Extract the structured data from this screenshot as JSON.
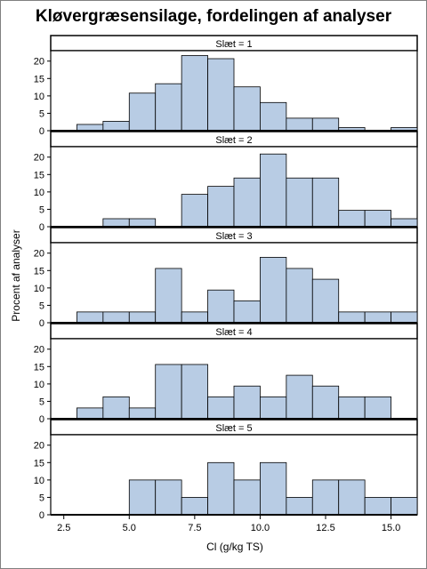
{
  "chart_data": {
    "type": "bar",
    "title": "Kløvergræsensilage, fordelingen af analyser",
    "xlabel": "Cl (g/kg TS)",
    "ylabel": "Procent af analyser",
    "xlim": [
      2,
      16
    ],
    "xticks": [
      "2.5",
      "5.0",
      "7.5",
      "10.0",
      "12.5",
      "15.0"
    ],
    "ylim": [
      0,
      23
    ],
    "yticks": [
      "0",
      "5",
      "10",
      "15",
      "20"
    ],
    "bin_width": 1,
    "bar_color": "#b8cce4",
    "panels": [
      {
        "label": "Slæt = 1",
        "bins": [
          {
            "x0": 3,
            "value": 1.8
          },
          {
            "x0": 4,
            "value": 2.7
          },
          {
            "x0": 5,
            "value": 10.8
          },
          {
            "x0": 6,
            "value": 13.5
          },
          {
            "x0": 7,
            "value": 21.6
          },
          {
            "x0": 8,
            "value": 20.7
          },
          {
            "x0": 9,
            "value": 12.6
          },
          {
            "x0": 10,
            "value": 8.1
          },
          {
            "x0": 11,
            "value": 3.6
          },
          {
            "x0": 12,
            "value": 3.6
          },
          {
            "x0": 13,
            "value": 0.9
          },
          {
            "x0": 15,
            "value": 0.9
          }
        ]
      },
      {
        "label": "Slæt = 2",
        "bins": [
          {
            "x0": 4,
            "value": 2.3
          },
          {
            "x0": 5,
            "value": 2.3
          },
          {
            "x0": 7,
            "value": 9.3
          },
          {
            "x0": 8,
            "value": 11.6
          },
          {
            "x0": 9,
            "value": 14.0
          },
          {
            "x0": 10,
            "value": 20.9
          },
          {
            "x0": 11,
            "value": 14.0
          },
          {
            "x0": 12,
            "value": 14.0
          },
          {
            "x0": 13,
            "value": 4.7
          },
          {
            "x0": 14,
            "value": 4.7
          },
          {
            "x0": 15,
            "value": 2.3
          }
        ]
      },
      {
        "label": "Slæt = 3",
        "bins": [
          {
            "x0": 3,
            "value": 3.1
          },
          {
            "x0": 4,
            "value": 3.1
          },
          {
            "x0": 5,
            "value": 3.1
          },
          {
            "x0": 6,
            "value": 15.6
          },
          {
            "x0": 7,
            "value": 3.1
          },
          {
            "x0": 8,
            "value": 9.4
          },
          {
            "x0": 9,
            "value": 6.3
          },
          {
            "x0": 10,
            "value": 18.8
          },
          {
            "x0": 11,
            "value": 15.6
          },
          {
            "x0": 12,
            "value": 12.5
          },
          {
            "x0": 13,
            "value": 3.1
          },
          {
            "x0": 14,
            "value": 3.1
          },
          {
            "x0": 15,
            "value": 3.1
          }
        ]
      },
      {
        "label": "Slæt = 4",
        "bins": [
          {
            "x0": 3,
            "value": 3.1
          },
          {
            "x0": 4,
            "value": 6.3
          },
          {
            "x0": 5,
            "value": 3.1
          },
          {
            "x0": 6,
            "value": 15.6
          },
          {
            "x0": 7,
            "value": 15.6
          },
          {
            "x0": 8,
            "value": 6.3
          },
          {
            "x0": 9,
            "value": 9.4
          },
          {
            "x0": 10,
            "value": 6.3
          },
          {
            "x0": 11,
            "value": 12.5
          },
          {
            "x0": 12,
            "value": 9.4
          },
          {
            "x0": 13,
            "value": 6.3
          },
          {
            "x0": 14,
            "value": 6.3
          }
        ]
      },
      {
        "label": "Slæt = 5",
        "bins": [
          {
            "x0": 5,
            "value": 10
          },
          {
            "x0": 6,
            "value": 10
          },
          {
            "x0": 7,
            "value": 5
          },
          {
            "x0": 8,
            "value": 15
          },
          {
            "x0": 9,
            "value": 10
          },
          {
            "x0": 10,
            "value": 15
          },
          {
            "x0": 11,
            "value": 5
          },
          {
            "x0": 12,
            "value": 10
          },
          {
            "x0": 13,
            "value": 10
          },
          {
            "x0": 14,
            "value": 5
          },
          {
            "x0": 15,
            "value": 5
          }
        ]
      }
    ]
  }
}
